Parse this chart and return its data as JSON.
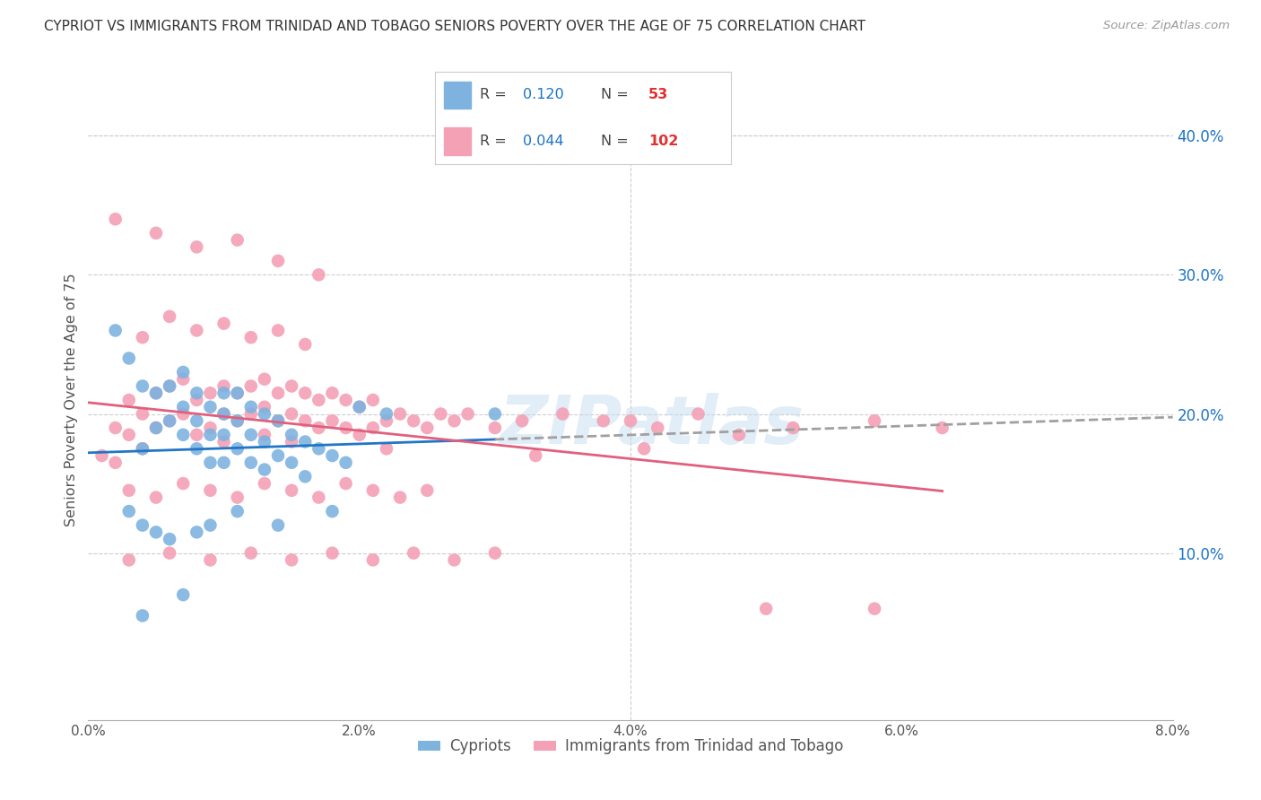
{
  "title": "CYPRIOT VS IMMIGRANTS FROM TRINIDAD AND TOBAGO SENIORS POVERTY OVER THE AGE OF 75 CORRELATION CHART",
  "source": "Source: ZipAtlas.com",
  "ylabel": "Seniors Poverty Over the Age of 75",
  "xlabel_ticks": [
    "0.0%",
    "2.0%",
    "4.0%",
    "6.0%",
    "8.0%"
  ],
  "xlabel_vals": [
    0.0,
    0.02,
    0.04,
    0.06,
    0.08
  ],
  "ylabel_ticks_right": [
    "10.0%",
    "20.0%",
    "30.0%",
    "40.0%"
  ],
  "ylabel_vals_right": [
    0.1,
    0.2,
    0.3,
    0.4
  ],
  "xlim": [
    0.0,
    0.08
  ],
  "ylim": [
    -0.02,
    0.44
  ],
  "cypriot_color": "#7eb3e0",
  "tt_color": "#f4a0b5",
  "cypriot_line_color": "#2176c7",
  "tt_line_color": "#e0607e",
  "trend_ext_color": "#a0a0a0",
  "background_color": "#ffffff",
  "grid_color": "#cccccc",
  "title_color": "#333333",
  "source_color": "#999999",
  "legend_R_color": "#1a73c7",
  "legend_N_color": "#e03030",
  "watermark": "ZIPatlas",
  "cypriot_x": [
    0.002,
    0.003,
    0.004,
    0.004,
    0.005,
    0.005,
    0.006,
    0.006,
    0.007,
    0.007,
    0.007,
    0.008,
    0.008,
    0.008,
    0.009,
    0.009,
    0.009,
    0.01,
    0.01,
    0.01,
    0.01,
    0.011,
    0.011,
    0.011,
    0.012,
    0.012,
    0.012,
    0.013,
    0.013,
    0.013,
    0.014,
    0.014,
    0.015,
    0.015,
    0.016,
    0.016,
    0.017,
    0.018,
    0.019,
    0.02,
    0.003,
    0.004,
    0.005,
    0.006,
    0.008,
    0.009,
    0.011,
    0.014,
    0.018,
    0.022,
    0.004,
    0.007,
    0.03
  ],
  "cypriot_y": [
    0.26,
    0.24,
    0.22,
    0.175,
    0.215,
    0.19,
    0.22,
    0.195,
    0.23,
    0.205,
    0.185,
    0.215,
    0.195,
    0.175,
    0.205,
    0.185,
    0.165,
    0.215,
    0.2,
    0.185,
    0.165,
    0.215,
    0.195,
    0.175,
    0.205,
    0.185,
    0.165,
    0.2,
    0.18,
    0.16,
    0.195,
    0.17,
    0.185,
    0.165,
    0.18,
    0.155,
    0.175,
    0.17,
    0.165,
    0.205,
    0.13,
    0.12,
    0.115,
    0.11,
    0.115,
    0.12,
    0.13,
    0.12,
    0.13,
    0.2,
    0.055,
    0.07,
    0.2
  ],
  "tt_x": [
    0.001,
    0.002,
    0.002,
    0.003,
    0.003,
    0.004,
    0.004,
    0.005,
    0.005,
    0.006,
    0.006,
    0.007,
    0.007,
    0.008,
    0.008,
    0.009,
    0.009,
    0.01,
    0.01,
    0.01,
    0.011,
    0.011,
    0.012,
    0.012,
    0.013,
    0.013,
    0.013,
    0.014,
    0.014,
    0.015,
    0.015,
    0.015,
    0.016,
    0.016,
    0.017,
    0.017,
    0.018,
    0.018,
    0.019,
    0.019,
    0.02,
    0.02,
    0.021,
    0.021,
    0.022,
    0.022,
    0.023,
    0.024,
    0.025,
    0.026,
    0.027,
    0.028,
    0.03,
    0.032,
    0.035,
    0.038,
    0.04,
    0.042,
    0.045,
    0.048,
    0.052,
    0.058,
    0.063,
    0.004,
    0.006,
    0.008,
    0.01,
    0.012,
    0.014,
    0.016,
    0.003,
    0.005,
    0.007,
    0.009,
    0.011,
    0.013,
    0.015,
    0.017,
    0.019,
    0.021,
    0.023,
    0.025,
    0.003,
    0.006,
    0.009,
    0.012,
    0.015,
    0.018,
    0.021,
    0.024,
    0.027,
    0.03,
    0.002,
    0.005,
    0.008,
    0.011,
    0.014,
    0.017,
    0.033,
    0.041,
    0.05,
    0.058
  ],
  "tt_y": [
    0.17,
    0.19,
    0.165,
    0.21,
    0.185,
    0.2,
    0.175,
    0.215,
    0.19,
    0.22,
    0.195,
    0.225,
    0.2,
    0.21,
    0.185,
    0.215,
    0.19,
    0.22,
    0.2,
    0.18,
    0.215,
    0.195,
    0.22,
    0.2,
    0.225,
    0.205,
    0.185,
    0.215,
    0.195,
    0.22,
    0.2,
    0.18,
    0.215,
    0.195,
    0.21,
    0.19,
    0.215,
    0.195,
    0.21,
    0.19,
    0.205,
    0.185,
    0.21,
    0.19,
    0.195,
    0.175,
    0.2,
    0.195,
    0.19,
    0.2,
    0.195,
    0.2,
    0.19,
    0.195,
    0.2,
    0.195,
    0.195,
    0.19,
    0.2,
    0.185,
    0.19,
    0.195,
    0.19,
    0.255,
    0.27,
    0.26,
    0.265,
    0.255,
    0.26,
    0.25,
    0.145,
    0.14,
    0.15,
    0.145,
    0.14,
    0.15,
    0.145,
    0.14,
    0.15,
    0.145,
    0.14,
    0.145,
    0.095,
    0.1,
    0.095,
    0.1,
    0.095,
    0.1,
    0.095,
    0.1,
    0.095,
    0.1,
    0.34,
    0.33,
    0.32,
    0.325,
    0.31,
    0.3,
    0.17,
    0.175,
    0.06,
    0.06
  ]
}
